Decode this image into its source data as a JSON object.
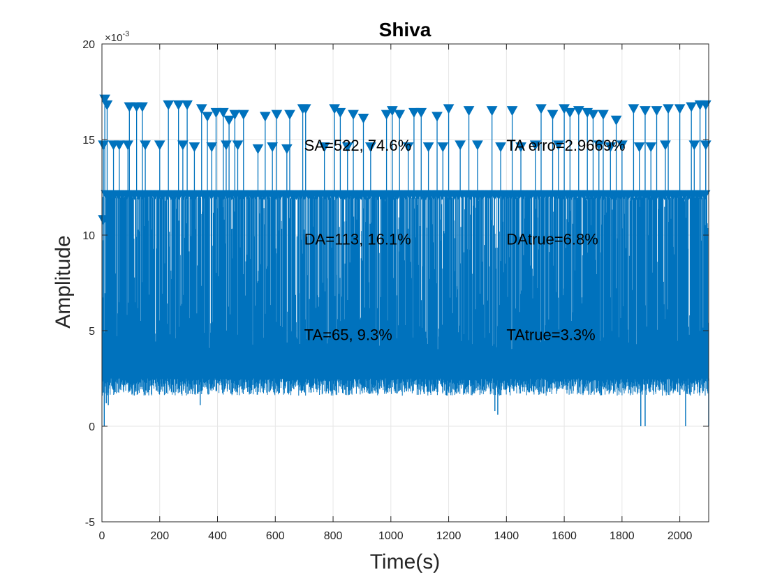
{
  "chart_data": {
    "type": "line",
    "title": "Shiva",
    "xlabel": "Time(s)",
    "ylabel": "Amplitude",
    "y_exponent_label": "×10",
    "y_exponent_power": "-3",
    "xlim": [
      0,
      2100
    ],
    "ylim": [
      -5,
      20
    ],
    "xticks": [
      "0",
      "200",
      "400",
      "600",
      "800",
      "1000",
      "1200",
      "1400",
      "1600",
      "1800",
      "2000"
    ],
    "xtick_values": [
      0,
      200,
      400,
      600,
      800,
      1000,
      1200,
      1400,
      1600,
      1800,
      2000
    ],
    "yticks": [
      "-5",
      "0",
      "5",
      "10",
      "15",
      "20"
    ],
    "ytick_values": [
      -5,
      0,
      5,
      10,
      15,
      20
    ],
    "grid": true,
    "series": [
      {
        "role": "signal",
        "color": "#0072BD",
        "baseline_typical": 2.5,
        "dip_points": [
          {
            "x": 8,
            "y": 0.0
          },
          {
            "x": 15,
            "y": 1.2
          },
          {
            "x": 22,
            "y": 1.1
          },
          {
            "x": 340,
            "y": 1.1
          },
          {
            "x": 1360,
            "y": 0.8
          },
          {
            "x": 1370,
            "y": 0.6
          },
          {
            "x": 1865,
            "y": 0.0
          },
          {
            "x": 1880,
            "y": 0.0
          },
          {
            "x": 2020,
            "y": 0.0
          },
          {
            "x": 2100,
            "y": 0.0
          }
        ]
      },
      {
        "role": "peak markers",
        "marker": "downward-triangle",
        "color": "#0072BD",
        "peaks": [
          {
            "x": 5,
            "y": 10.8
          },
          {
            "x": 10,
            "y": 17.1
          },
          {
            "x": 18,
            "y": 16.8
          },
          {
            "x": 25,
            "y": 12.1
          },
          {
            "x": 5,
            "y": 14.7
          },
          {
            "x": 40,
            "y": 14.7
          },
          {
            "x": 60,
            "y": 14.7
          },
          {
            "x": 95,
            "y": 16.7
          },
          {
            "x": 120,
            "y": 16.7
          },
          {
            "x": 140,
            "y": 16.7
          },
          {
            "x": 230,
            "y": 16.8
          },
          {
            "x": 265,
            "y": 16.8
          },
          {
            "x": 295,
            "y": 16.8
          },
          {
            "x": 345,
            "y": 16.6
          },
          {
            "x": 365,
            "y": 16.2
          },
          {
            "x": 395,
            "y": 16.4
          },
          {
            "x": 420,
            "y": 16.4
          },
          {
            "x": 440,
            "y": 16.0
          },
          {
            "x": 460,
            "y": 16.3
          },
          {
            "x": 490,
            "y": 16.3
          },
          {
            "x": 565,
            "y": 16.2
          },
          {
            "x": 605,
            "y": 16.3
          },
          {
            "x": 650,
            "y": 16.3
          },
          {
            "x": 695,
            "y": 16.6
          },
          {
            "x": 705,
            "y": 16.6
          },
          {
            "x": 805,
            "y": 16.6
          },
          {
            "x": 825,
            "y": 16.4
          },
          {
            "x": 870,
            "y": 16.3
          },
          {
            "x": 905,
            "y": 16.1
          },
          {
            "x": 985,
            "y": 16.3
          },
          {
            "x": 1005,
            "y": 16.5
          },
          {
            "x": 1030,
            "y": 16.3
          },
          {
            "x": 1080,
            "y": 16.4
          },
          {
            "x": 1105,
            "y": 16.4
          },
          {
            "x": 1160,
            "y": 16.2
          },
          {
            "x": 1200,
            "y": 16.6
          },
          {
            "x": 1270,
            "y": 16.5
          },
          {
            "x": 1350,
            "y": 16.5
          },
          {
            "x": 1420,
            "y": 16.5
          },
          {
            "x": 1520,
            "y": 16.6
          },
          {
            "x": 1560,
            "y": 16.3
          },
          {
            "x": 1600,
            "y": 16.6
          },
          {
            "x": 1620,
            "y": 16.4
          },
          {
            "x": 1650,
            "y": 16.5
          },
          {
            "x": 1680,
            "y": 16.4
          },
          {
            "x": 1700,
            "y": 16.3
          },
          {
            "x": 1735,
            "y": 16.3
          },
          {
            "x": 1780,
            "y": 16.0
          },
          {
            "x": 1840,
            "y": 16.6
          },
          {
            "x": 1880,
            "y": 16.5
          },
          {
            "x": 1920,
            "y": 16.5
          },
          {
            "x": 1960,
            "y": 16.6
          },
          {
            "x": 2000,
            "y": 16.6
          },
          {
            "x": 2040,
            "y": 16.7
          },
          {
            "x": 2070,
            "y": 16.8
          },
          {
            "x": 2090,
            "y": 16.8
          },
          {
            "x": 90,
            "y": 14.7
          },
          {
            "x": 150,
            "y": 14.7
          },
          {
            "x": 200,
            "y": 14.7
          },
          {
            "x": 280,
            "y": 14.7
          },
          {
            "x": 320,
            "y": 14.6
          },
          {
            "x": 380,
            "y": 14.6
          },
          {
            "x": 430,
            "y": 14.7
          },
          {
            "x": 470,
            "y": 14.7
          },
          {
            "x": 540,
            "y": 14.5
          },
          {
            "x": 590,
            "y": 14.6
          },
          {
            "x": 640,
            "y": 14.5
          },
          {
            "x": 770,
            "y": 14.6
          },
          {
            "x": 850,
            "y": 14.6
          },
          {
            "x": 930,
            "y": 14.6
          },
          {
            "x": 1060,
            "y": 14.6
          },
          {
            "x": 1130,
            "y": 14.6
          },
          {
            "x": 1180,
            "y": 14.6
          },
          {
            "x": 1240,
            "y": 14.7
          },
          {
            "x": 1300,
            "y": 14.7
          },
          {
            "x": 1380,
            "y": 14.6
          },
          {
            "x": 1450,
            "y": 14.6
          },
          {
            "x": 1500,
            "y": 14.7
          },
          {
            "x": 1580,
            "y": 14.7
          },
          {
            "x": 1720,
            "y": 14.7
          },
          {
            "x": 1760,
            "y": 14.6
          },
          {
            "x": 1800,
            "y": 14.7
          },
          {
            "x": 1860,
            "y": 14.6
          },
          {
            "x": 1900,
            "y": 14.6
          },
          {
            "x": 1950,
            "y": 14.7
          },
          {
            "x": 2050,
            "y": 14.7
          },
          {
            "x": 2090,
            "y": 14.7
          }
        ],
        "band_value": 12.1
      }
    ],
    "annotations": [
      {
        "text": "SA=522,  74.6%",
        "x": 700,
        "y": 14.7
      },
      {
        "text": "TA erro=2.9669%",
        "x": 1400,
        "y": 14.7
      },
      {
        "text": "DA=113,  16.1%",
        "x": 700,
        "y": 9.8
      },
      {
        "text": "DAtrue=6.8%",
        "x": 1400,
        "y": 9.8
      },
      {
        "text": "TA=65,  9.3%",
        "x": 700,
        "y": 4.8
      },
      {
        "text": "TAtrue=3.3%",
        "x": 1400,
        "y": 4.8
      }
    ]
  }
}
